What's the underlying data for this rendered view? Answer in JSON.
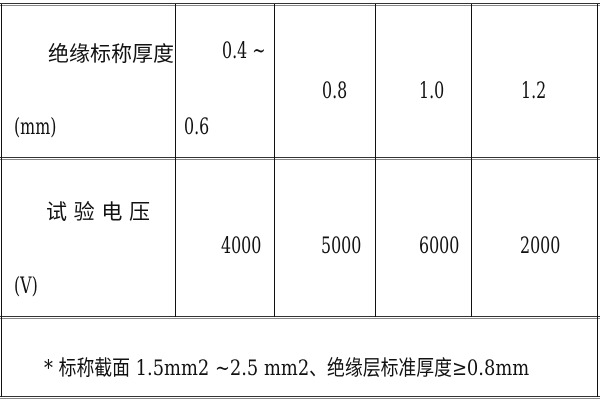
{
  "table": {
    "rows": [
      {
        "header_line1": "绝缘标称厚度",
        "header_line2": "(mm)",
        "values": [
          "0.4 ~",
          "0.6",
          "0.8",
          "1.0",
          "1.2"
        ]
      },
      {
        "header_line1": "试 验 电 压",
        "header_line2": "(V)",
        "values": [
          "4000",
          "5000",
          "6000",
          "2000"
        ]
      }
    ],
    "footnote": "* 标称截面 1.5mm2 ~2.5 mm2、绝缘层标准厚度≥0.8mm"
  }
}
